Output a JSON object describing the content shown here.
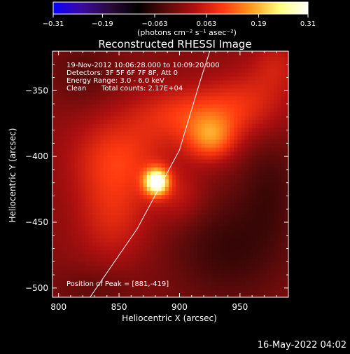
{
  "colorbar": {
    "ticks": [
      "-0.31",
      "-0.19",
      "-0.063",
      "0.063",
      "0.19",
      "0.31"
    ],
    "tick_values": [
      -0.31,
      -0.19,
      -0.063,
      0.063,
      0.19,
      0.31
    ],
    "range": [
      -0.31,
      0.31
    ],
    "units_label": "(photons cm⁻² s⁻¹ asec⁻²)"
  },
  "annotations": {
    "time_range": "19-Nov-2012 10:06:28.000 to 10:09:20.000",
    "detectors": "Detectors: 3F 5F 6F 7F 8F, Att 0",
    "energy": "Energy Range: 3.0 - 6.0 keV",
    "clean": "Clean",
    "counts": "Total counts: 2.17E+04",
    "peak": "Position of Peak = [881,-419]"
  },
  "footer": {
    "timestamp": "16-May-2022 04:02"
  },
  "chart_data": {
    "type": "heatmap",
    "title": "Reconstructed RHESSI Image",
    "xlabel": "Heliocentric X (arcsec)",
    "ylabel": "Heliocentric Y (arcsec)",
    "xlim": [
      795,
      990
    ],
    "ylim": [
      -507,
      -320
    ],
    "xticks": [
      800,
      850,
      900,
      950
    ],
    "yticks": [
      -350,
      -400,
      -450,
      -500
    ],
    "xtick_labels": [
      "800",
      "850",
      "900",
      "950"
    ],
    "ytick_labels": [
      "−350",
      "−400",
      "−450",
      "−500"
    ],
    "peak": {
      "x": 881,
      "y": -419
    },
    "colormap": [
      "#0a00ff",
      "#3a0aa0",
      "#2a0a3a",
      "#000000",
      "#5a0a0a",
      "#b01010",
      "#ff3a10",
      "#ff9a20",
      "#ffff80",
      "#ffffff"
    ],
    "limb_line": [
      [
        826,
        -507
      ],
      [
        865,
        -455
      ],
      [
        900,
        -395
      ],
      [
        917,
        -343
      ],
      [
        925,
        -320
      ]
    ],
    "sources": [
      {
        "x": 881,
        "y": -419,
        "amp": 0.31,
        "sx": 7,
        "sy": 7
      },
      {
        "x": 926,
        "y": -386,
        "amp": 0.13,
        "sx": 14,
        "sy": 12
      },
      {
        "x": 905,
        "y": -368,
        "amp": 0.09,
        "sx": 30,
        "sy": 15
      },
      {
        "x": 850,
        "y": -400,
        "amp": 0.09,
        "sx": 28,
        "sy": 22
      },
      {
        "x": 845,
        "y": -445,
        "amp": 0.07,
        "sx": 22,
        "sy": 25
      },
      {
        "x": 955,
        "y": -360,
        "amp": 0.07,
        "sx": 25,
        "sy": 18
      },
      {
        "x": 900,
        "y": -430,
        "amp": 0.05,
        "sx": 15,
        "sy": 15
      },
      {
        "x": 980,
        "y": -330,
        "amp": 0.05,
        "sx": 15,
        "sy": 15
      },
      {
        "x": 820,
        "y": -335,
        "amp": -0.035,
        "sx": 20,
        "sy": 18
      },
      {
        "x": 830,
        "y": -500,
        "amp": -0.03,
        "sx": 25,
        "sy": 12
      },
      {
        "x": 940,
        "y": -470,
        "amp": -0.06,
        "sx": 35,
        "sy": 30
      },
      {
        "x": 975,
        "y": -420,
        "amp": -0.045,
        "sx": 18,
        "sy": 30
      }
    ]
  }
}
